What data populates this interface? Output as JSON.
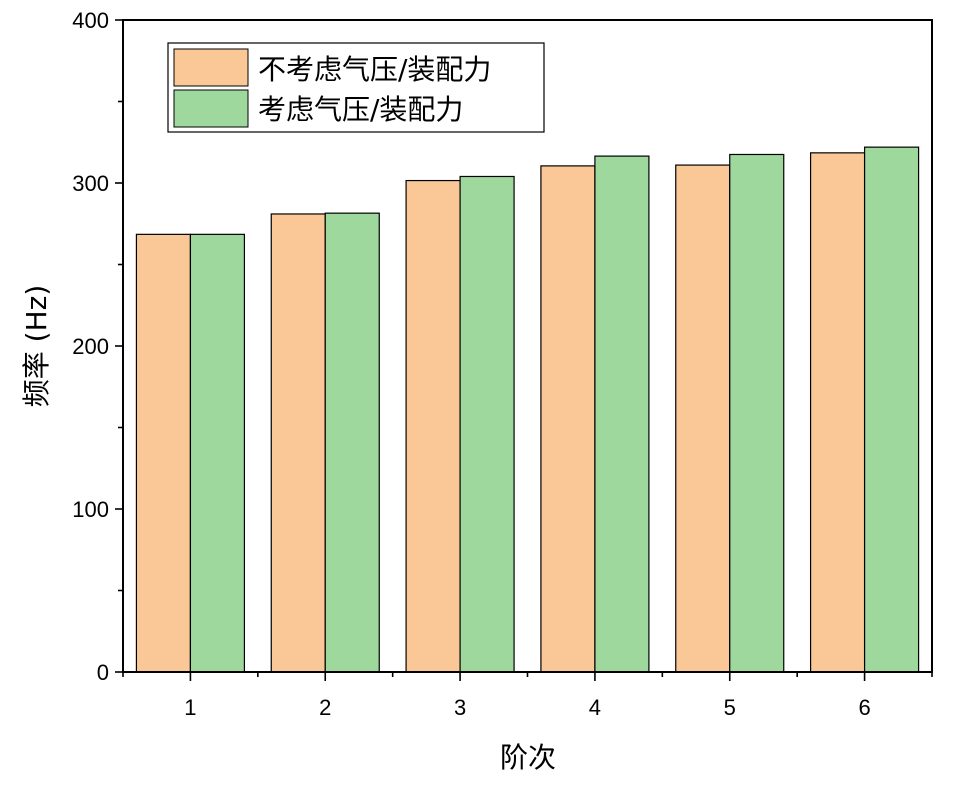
{
  "chart_data": {
    "type": "bar",
    "categories": [
      "1",
      "2",
      "3",
      "4",
      "5",
      "6"
    ],
    "series": [
      {
        "name": "不考虑气压/装配力",
        "color": "#F9C896",
        "values": [
          268.5,
          281,
          301.5,
          310.5,
          311,
          318.5
        ]
      },
      {
        "name": "考虑气压/装配力",
        "color": "#9FD89C",
        "values": [
          268.5,
          281.5,
          304,
          316.5,
          317.5,
          322
        ]
      }
    ],
    "xlabel": "阶次",
    "ylabel": "频率 (Hz)",
    "ylim": [
      0,
      400
    ],
    "yticks": [
      "0",
      "100",
      "200",
      "300",
      "400"
    ],
    "legend_position": "top-left",
    "grid": false
  }
}
